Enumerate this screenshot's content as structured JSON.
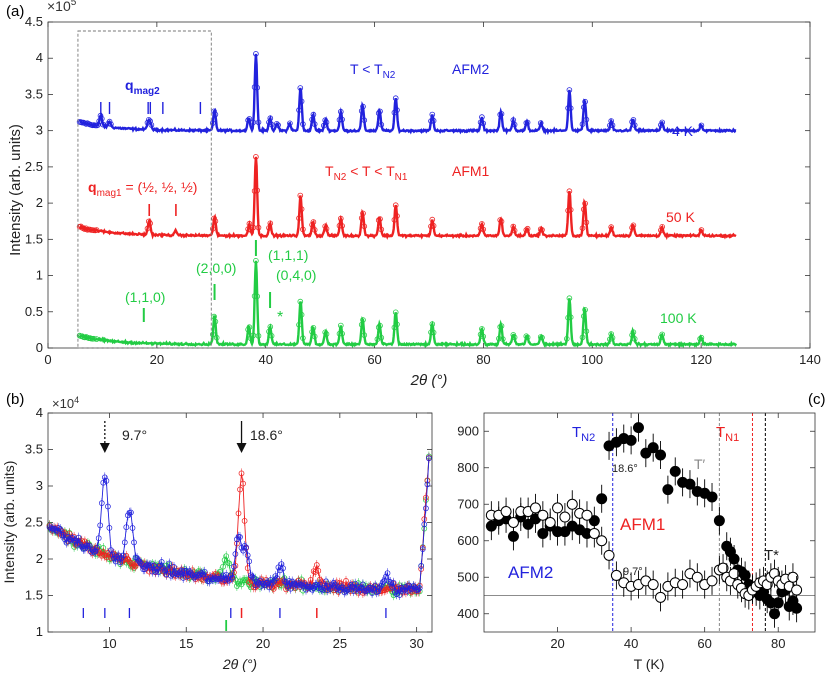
{
  "figure": {
    "panel_a": {
      "label": "(a)",
      "multiplier": "×10",
      "multiplier_exp": "5",
      "x_label": "2θ (°)",
      "y_label": "Intensity (arb. units)",
      "annotations": {
        "qmag2": "q",
        "qmag2_sub": "mag2",
        "t_lt_tn2": "T < T",
        "t_lt_tn2_sub": "N2",
        "afm2": "AFM2",
        "k4": "4 K",
        "tn2_t_tn1_a": "T",
        "tn2_t_tn1_a_sub": "N2",
        "tn2_t_tn1_b": " < T < T",
        "tn2_t_tn1_b_sub": "N1",
        "afm1": "AFM1",
        "qmag1": "q",
        "qmag1_sub": "mag1",
        "qmag1_val": " = (½, ½, ½)",
        "k50": "50 K",
        "k100": "100 K",
        "p110": "(1,1,0)",
        "p200": "(2,0,0)",
        "p111": "(1,1,1)",
        "p040": "(0,4,0)",
        "star": "*"
      }
    },
    "panel_b": {
      "label": "(b)",
      "multiplier": "×10",
      "multiplier_exp": "4",
      "x_label": "2θ (°)",
      "y_label": "Intensity (arb. units)",
      "arrow1": "9.7°",
      "arrow2": "18.6°"
    },
    "panel_c": {
      "label": "(c)",
      "x_label": "T (K)",
      "tn2": "T",
      "tn2_sub": "N2",
      "tn1": "T",
      "tn1_sub": "N1",
      "tprime": "T′",
      "tstar": "T*",
      "afm1": "AFM1",
      "afm2": "AFM2",
      "lbl186": "18.6°",
      "lbl97": "9.7°"
    }
  },
  "colors": {
    "blue": "#2222dd",
    "red": "#ee2222",
    "green": "#22cc44",
    "black": "#000000",
    "grey": "#888888"
  },
  "chart_data": [
    {
      "type": "scatter",
      "panel": "a",
      "xlabel": "2θ (°)",
      "ylabel": "Intensity (arb. units)",
      "xlim": [
        0,
        140
      ],
      "ylim": [
        0,
        450000
      ],
      "x_ticks": [
        0,
        20,
        40,
        60,
        80,
        100,
        120,
        140
      ],
      "y_ticks": [
        0,
        0.5,
        1,
        1.5,
        2,
        2.5,
        3,
        3.5,
        4,
        4.5
      ],
      "y_multiplier": "×10^5",
      "dashed_box_x": [
        5.5,
        30
      ],
      "series": [
        {
          "name": "4 K",
          "color": "#2222dd",
          "baseline": 300000,
          "peaks": [
            [
              9.7,
              15000
            ],
            [
              11.3,
              8000
            ],
            [
              18.4,
              10000
            ],
            [
              18.8,
              8000
            ],
            [
              30.6,
              28000
            ],
            [
              36.9,
              18000
            ],
            [
              38.2,
              105000
            ],
            [
              40.8,
              18000
            ],
            [
              42.1,
              10000
            ],
            [
              44.4,
              10000
            ],
            [
              46.4,
              60000
            ],
            [
              48.7,
              22000
            ],
            [
              51.0,
              16000
            ],
            [
              53.8,
              26000
            ],
            [
              57.8,
              35000
            ],
            [
              60.9,
              28000
            ],
            [
              63.9,
              45000
            ],
            [
              70.6,
              22000
            ],
            [
              79.7,
              18000
            ],
            [
              83.2,
              26000
            ],
            [
              85.5,
              14000
            ],
            [
              88.0,
              12000
            ],
            [
              90.6,
              10000
            ],
            [
              95.8,
              55000
            ],
            [
              98.6,
              42000
            ],
            [
              103.5,
              12000
            ],
            [
              107.5,
              16000
            ],
            [
              112.8,
              12000
            ],
            [
              120.0,
              8000
            ]
          ]
        },
        {
          "name": "50 K",
          "color": "#ee2222",
          "baseline": 155000,
          "peaks": [
            [
              18.6,
              20000
            ],
            [
              23.5,
              6000
            ],
            [
              30.6,
              26000
            ],
            [
              37.0,
              16000
            ],
            [
              38.2,
              110000
            ],
            [
              40.8,
              16000
            ],
            [
              46.4,
              55000
            ],
            [
              48.7,
              20000
            ],
            [
              51.0,
              14000
            ],
            [
              53.8,
              24000
            ],
            [
              57.8,
              33000
            ],
            [
              60.9,
              26000
            ],
            [
              63.9,
              43000
            ],
            [
              70.6,
              22000
            ],
            [
              79.7,
              16000
            ],
            [
              83.2,
              24000
            ],
            [
              85.5,
              12000
            ],
            [
              88.0,
              10000
            ],
            [
              90.6,
              10000
            ],
            [
              95.8,
              62000
            ],
            [
              98.6,
              48000
            ],
            [
              103.5,
              12000
            ],
            [
              107.5,
              16000
            ],
            [
              112.8,
              12000
            ],
            [
              120.0,
              8000
            ]
          ]
        },
        {
          "name": "100 K",
          "color": "#22cc44",
          "baseline": 5000,
          "peaks": [
            [
              30.6,
              40000
            ],
            [
              36.9,
              25000
            ],
            [
              38.2,
              115000
            ],
            [
              40.8,
              25000
            ],
            [
              46.4,
              60000
            ],
            [
              48.7,
              25000
            ],
            [
              51.0,
              18000
            ],
            [
              53.8,
              26000
            ],
            [
              57.8,
              35000
            ],
            [
              60.9,
              28000
            ],
            [
              63.9,
              45000
            ],
            [
              70.6,
              28000
            ],
            [
              79.7,
              22000
            ],
            [
              83.2,
              28000
            ],
            [
              85.5,
              14000
            ],
            [
              88.0,
              12000
            ],
            [
              90.6,
              12000
            ],
            [
              95.8,
              65000
            ],
            [
              98.6,
              50000
            ],
            [
              103.5,
              14000
            ],
            [
              107.5,
              18000
            ],
            [
              112.8,
              14000
            ],
            [
              120.0,
              10000
            ]
          ]
        }
      ],
      "tick_marks": {
        "blue": [
          9.7,
          11.3,
          18.4,
          18.8,
          21.1,
          28.0
        ],
        "red": [
          18.6,
          23.5
        ],
        "green_short": [
          17.6
        ],
        "green_long": [
          30.6,
          38.2,
          40.8
        ]
      }
    },
    {
      "type": "scatter",
      "panel": "b",
      "xlabel": "2θ (°)",
      "ylabel": "Intensity (arb. units)",
      "xlim": [
        6,
        31
      ],
      "ylim": [
        10000,
        40000
      ],
      "x_ticks": [
        10,
        15,
        20,
        25,
        30
      ],
      "y_ticks": [
        1,
        1.5,
        2,
        2.5,
        3,
        3.5,
        4
      ],
      "y_multiplier": "×10^4",
      "series": [
        {
          "name": "4 K",
          "color": "#2222dd",
          "peaks": [
            [
              9.7,
              11000
            ],
            [
              11.3,
              7000
            ],
            [
              18.4,
              6000
            ],
            [
              18.9,
              4000
            ],
            [
              21.1,
              2500
            ],
            [
              28.0,
              2000
            ]
          ]
        },
        {
          "name": "50 K",
          "color": "#ee2222",
          "peaks": [
            [
              18.6,
              15000
            ],
            [
              23.5,
              2500
            ]
          ]
        },
        {
          "name": "100 K",
          "color": "#22cc44",
          "peaks": [
            [
              17.6,
              3000
            ]
          ]
        }
      ],
      "arrows": [
        {
          "x": 9.7,
          "label": "9.7°",
          "style": "dotted"
        },
        {
          "x": 18.6,
          "label": "18.6°",
          "style": "solid"
        }
      ],
      "tick_marks": {
        "blue": [
          8.3,
          9.7,
          11.3,
          17.9,
          21.1,
          28.0
        ],
        "red": [
          18.6,
          23.5
        ],
        "green": [
          17.6
        ]
      }
    },
    {
      "type": "scatter",
      "panel": "c",
      "xlabel": "T (K)",
      "xlim": [
        0,
        90
      ],
      "ylim": [
        350,
        950
      ],
      "x_ticks": [
        20,
        40,
        60,
        80
      ],
      "y_ticks": [
        400,
        500,
        600,
        700,
        800,
        900
      ],
      "reference_line_y": 450,
      "vlines": [
        {
          "x": 35,
          "label": "TN2",
          "color": "#2222dd"
        },
        {
          "x": 64,
          "label": "T′",
          "color": "#888888"
        },
        {
          "x": 73,
          "label": "TN1",
          "color": "#ee2222"
        },
        {
          "x": 76.5,
          "label": "T*",
          "color": "#000000"
        }
      ],
      "series": [
        {
          "name": "18.6°",
          "marker": "filled",
          "points": [
            [
              2,
              640
            ],
            [
              4,
              655
            ],
            [
              6,
              660
            ],
            [
              8,
              612
            ],
            [
              10,
              665
            ],
            [
              12,
              645
            ],
            [
              14,
              660
            ],
            [
              16,
              620
            ],
            [
              18,
              640
            ],
            [
              20,
              625
            ],
            [
              22,
              625
            ],
            [
              24,
              640
            ],
            [
              26,
              630
            ],
            [
              28,
              620
            ],
            [
              30,
              655
            ],
            [
              32,
              715
            ],
            [
              34,
              860
            ],
            [
              36,
              870
            ],
            [
              38,
              880
            ],
            [
              40,
              875
            ],
            [
              42,
              910
            ],
            [
              44,
              840
            ],
            [
              46,
              855
            ],
            [
              48,
              835
            ],
            [
              50,
              740
            ],
            [
              52,
              790
            ],
            [
              54,
              760
            ],
            [
              56,
              755
            ],
            [
              58,
              735
            ],
            [
              60,
              730
            ],
            [
              62,
              720
            ],
            [
              64,
              655
            ],
            [
              66,
              585
            ],
            [
              67,
              570
            ],
            [
              68,
              550
            ],
            [
              69,
              520
            ],
            [
              70,
              515
            ],
            [
              71,
              505
            ],
            [
              72,
              480
            ],
            [
              73,
              470
            ],
            [
              74,
              460
            ],
            [
              75,
              450
            ],
            [
              76,
              460
            ],
            [
              77,
              440
            ],
            [
              78,
              430
            ],
            [
              79,
              400
            ],
            [
              80,
              430
            ],
            [
              81,
              460
            ],
            [
              82,
              465
            ],
            [
              83,
              420
            ],
            [
              84,
              435
            ],
            [
              85,
              415
            ]
          ]
        },
        {
          "name": "9.7°",
          "marker": "open",
          "points": [
            [
              2,
              670
            ],
            [
              4,
              670
            ],
            [
              6,
              680
            ],
            [
              8,
              650
            ],
            [
              10,
              680
            ],
            [
              12,
              680
            ],
            [
              14,
              690
            ],
            [
              16,
              670
            ],
            [
              18,
              650
            ],
            [
              20,
              690
            ],
            [
              22,
              665
            ],
            [
              24,
              700
            ],
            [
              26,
              675
            ],
            [
              28,
              670
            ],
            [
              30,
              620
            ],
            [
              32,
              600
            ],
            [
              34,
              560
            ],
            [
              36,
              505
            ],
            [
              38,
              485
            ],
            [
              40,
              475
            ],
            [
              42,
              480
            ],
            [
              44,
              490
            ],
            [
              46,
              480
            ],
            [
              48,
              445
            ],
            [
              50,
              475
            ],
            [
              52,
              485
            ],
            [
              54,
              480
            ],
            [
              56,
              510
            ],
            [
              58,
              500
            ],
            [
              60,
              480
            ],
            [
              62,
              490
            ],
            [
              64,
              520
            ],
            [
              65,
              525
            ],
            [
              66,
              500
            ],
            [
              67,
              490
            ],
            [
              68,
              510
            ],
            [
              69,
              480
            ],
            [
              70,
              470
            ],
            [
              71,
              455
            ],
            [
              72,
              450
            ],
            [
              73,
              465
            ],
            [
              74,
              475
            ],
            [
              75,
              485
            ],
            [
              76,
              490
            ],
            [
              77,
              480
            ],
            [
              78,
              500
            ],
            [
              79,
              510
            ],
            [
              80,
              490
            ],
            [
              81,
              480
            ],
            [
              82,
              495
            ],
            [
              83,
              475
            ],
            [
              84,
              500
            ],
            [
              85,
              465
            ]
          ]
        }
      ]
    }
  ]
}
